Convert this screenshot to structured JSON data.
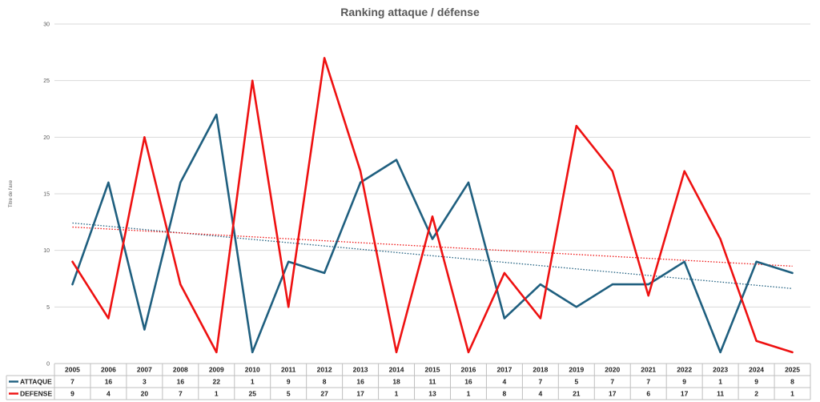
{
  "chart_data": {
    "type": "line",
    "title": "Ranking attaque / défense",
    "ylabel": "Titre de l'axe",
    "xlabel": "",
    "ylim": [
      0,
      30
    ],
    "yticks": [
      0,
      5,
      10,
      15,
      20,
      25,
      30
    ],
    "categories": [
      "2005",
      "2006",
      "2007",
      "2008",
      "2009",
      "2010",
      "2011",
      "2012",
      "2013",
      "2014",
      "2015",
      "2016",
      "2017",
      "2018",
      "2019",
      "2020",
      "2021",
      "2022",
      "2023",
      "2024",
      "2025"
    ],
    "series": [
      {
        "name": "ATTAQUE",
        "color": "#1f5f7f",
        "values": [
          7,
          16,
          3,
          16,
          22,
          1,
          9,
          8,
          16,
          18,
          11,
          16,
          4,
          7,
          5,
          7,
          7,
          9,
          1,
          9,
          8
        ],
        "trendline": "linear-dotted"
      },
      {
        "name": "DEFENSE",
        "color": "#ee1111",
        "values": [
          9,
          4,
          20,
          7,
          1,
          25,
          5,
          27,
          17,
          1,
          13,
          1,
          8,
          4,
          21,
          17,
          6,
          17,
          11,
          2,
          1
        ],
        "trendline": "linear-dotted"
      }
    ],
    "grid": true,
    "legend": "data-table-below",
    "data_table": true
  }
}
